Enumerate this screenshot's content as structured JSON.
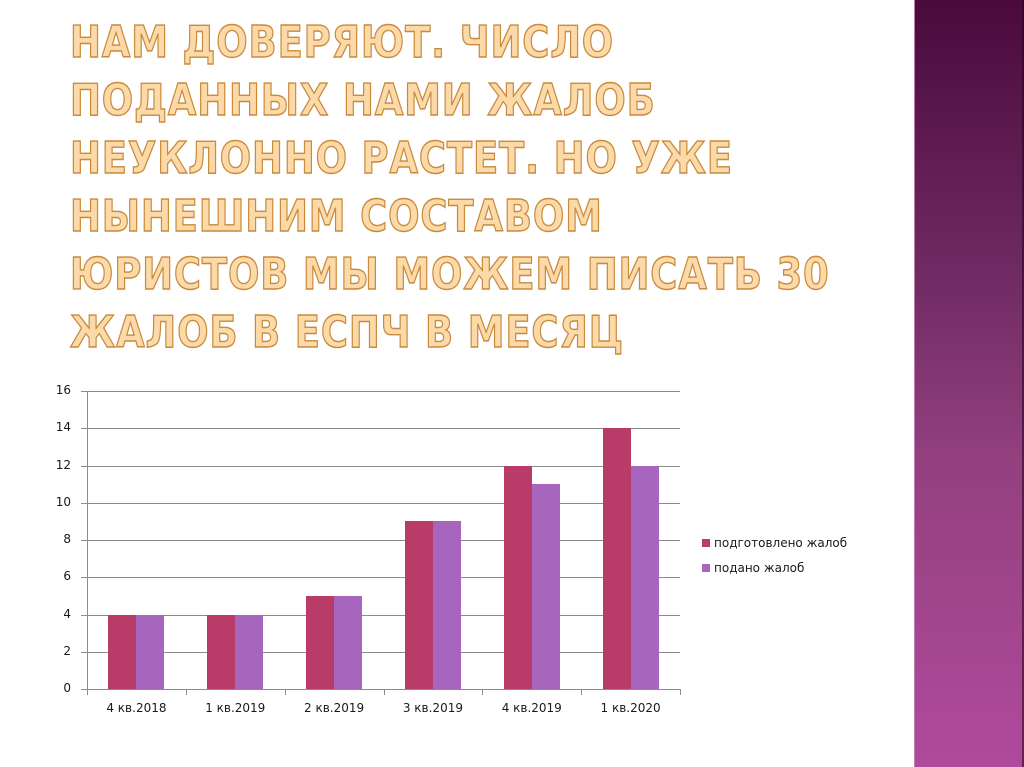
{
  "slide": {
    "title_lines": [
      "Нам доверяют. Число",
      "поданных нами жалоб",
      "неуклонно растет. Но уже",
      "нынешним составом",
      "юристов мы можем писать 30",
      "жалоб в ЕСПЧ в месяц"
    ],
    "accent_band_colors": [
      "#4a0a3c",
      "#b04a9c"
    ]
  },
  "chart_data": {
    "type": "bar",
    "title": "",
    "xlabel": "",
    "ylabel": "",
    "categories": [
      "4 кв.2018",
      "1 кв.2019",
      "2 кв.2019",
      "3 кв.2019",
      "4 кв.2019",
      "1 кв.2020"
    ],
    "series": [
      {
        "name": "подготовлено жалоб",
        "color": "#b83b68",
        "values": [
          4,
          4,
          5,
          9,
          12,
          14
        ]
      },
      {
        "name": "подано жалоб",
        "color": "#a865bd",
        "values": [
          4,
          4,
          5,
          9,
          11,
          12
        ]
      }
    ],
    "ylim": [
      0,
      16
    ],
    "yticks": [
      0,
      2,
      4,
      6,
      8,
      10,
      12,
      14,
      16
    ],
    "grid": true,
    "legend_position": "right"
  }
}
